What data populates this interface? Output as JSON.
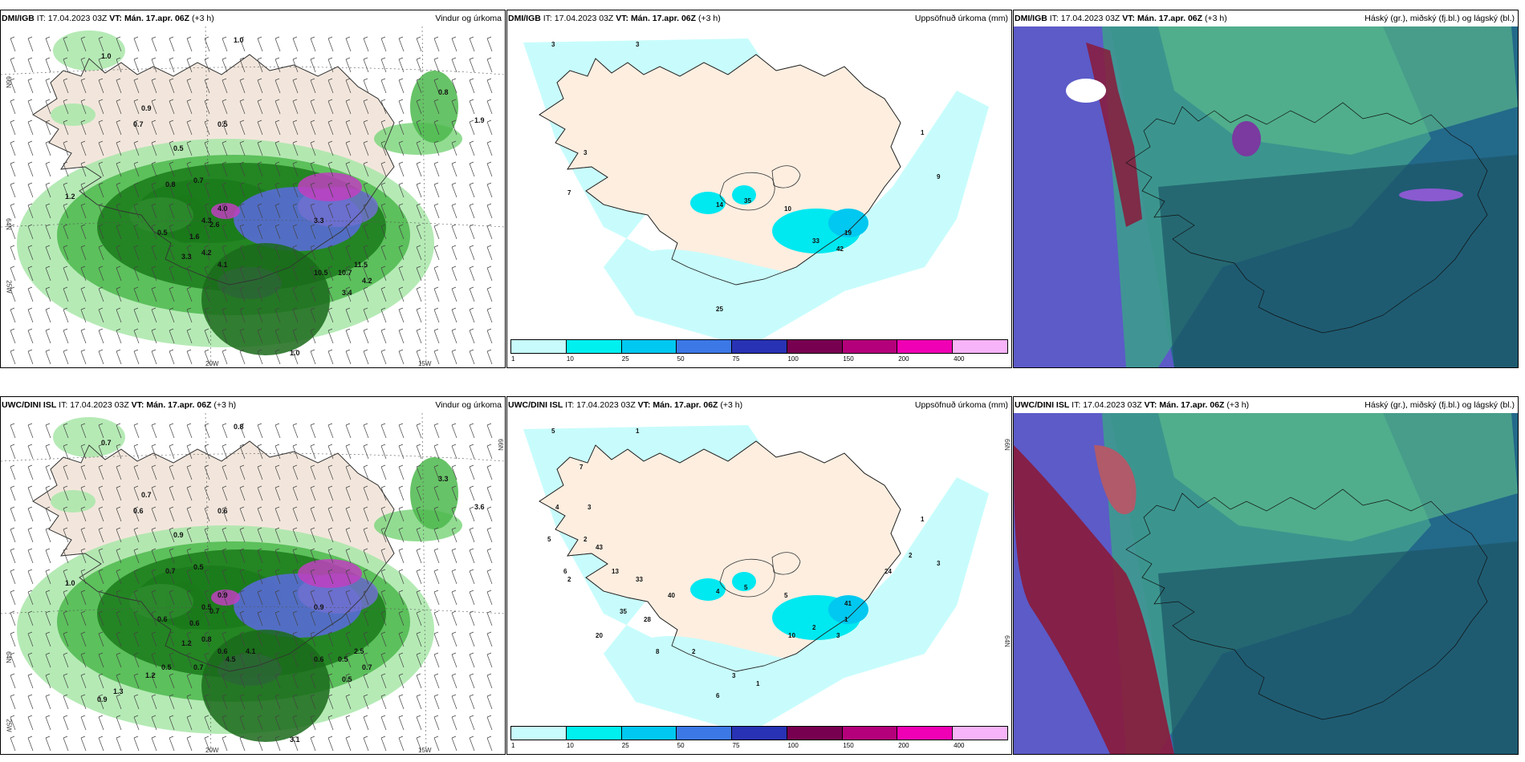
{
  "panels": [
    {
      "src": "DMI/IGB",
      "it_label": "IT:",
      "it": "17.04.2023 03Z",
      "vt_label": "VT:",
      "vt": "Mán. 17.apr. 06Z",
      "lead": "(+3 h)",
      "title": "Vindur og úrkoma",
      "type": "wind"
    },
    {
      "src": "DMI/IGB",
      "it_label": "IT:",
      "it": "17.04.2023 03Z",
      "vt_label": "VT:",
      "vt": "Mán. 17.apr. 06Z",
      "lead": "(+3 h)",
      "title": "Uppsöfnuð úrkoma (mm)",
      "type": "accum"
    },
    {
      "src": "DMI/IGB",
      "it_label": "IT:",
      "it": "17.04.2023 03Z",
      "vt_label": "VT:",
      "vt": "Mán. 17.apr. 06Z",
      "lead": "(+3 h)",
      "title": "Háský (gr.), miðský (fj.bl.) og lágský (bl.)",
      "type": "cloud"
    },
    {
      "src": "UWC/DINI ISL",
      "it_label": "IT:",
      "it": "17.04.2023 03Z",
      "vt_label": "VT:",
      "vt": "Mán. 17.apr. 06Z",
      "lead": "(+3 h)",
      "title": "Vindur og úrkoma",
      "type": "wind"
    },
    {
      "src": "UWC/DINI ISL",
      "it_label": "IT:",
      "it": "17.04.2023 03Z",
      "vt_label": "VT:",
      "vt": "Mán. 17.apr. 06Z",
      "lead": "(+3 h)",
      "title": "Uppsöfnuð úrkoma (mm)",
      "type": "accum"
    },
    {
      "src": "UWC/DINI ISL",
      "it_label": "IT:",
      "it": "17.04.2023 03Z",
      "vt_label": "VT:",
      "vt": "Mán. 17.apr. 06Z",
      "lead": "(+3 h)",
      "title": "Háský (gr.), miðský (fj.bl.) og lágský (bl.)",
      "type": "cloud"
    }
  ],
  "coords": {
    "lat66": "66N",
    "lat64": "64N",
    "lon25": "25W",
    "lon20": "20W",
    "lon15": "15W"
  },
  "legend": {
    "ticks": [
      "1",
      "10",
      "25",
      "50",
      "75",
      "100",
      "150",
      "200",
      "400"
    ],
    "colors": [
      "#c8fcfc",
      "#00f0f0",
      "#00c8f0",
      "#3c78e6",
      "#2832b4",
      "#780050",
      "#b4007a",
      "#f000b4",
      "#f8b4f8"
    ]
  },
  "labels": {
    "dmi_wind": [
      "1.0",
      "1.0",
      "0.9",
      "0.7",
      "0.5",
      "0.5",
      "0.7",
      "0.8",
      "0.5",
      "1.2",
      "4.0",
      "4.3",
      "2.6",
      "1.6",
      "4.2",
      "3.3",
      "4.1",
      "3.3",
      "10.5",
      "10.7",
      "11.5",
      "4.2",
      "3.4",
      "1.0",
      "0.8",
      "1.9"
    ],
    "uwc_wind": [
      "0.8",
      "0.7",
      "0.7",
      "0.6",
      "0.6",
      "0.9",
      "0.5",
      "0.7",
      "0.6",
      "1.0",
      "0.9",
      "0.5",
      "0.7",
      "0.6",
      "0.8",
      "1.2",
      "0.6",
      "0.9",
      "0.6",
      "0.5",
      "2.5",
      "0.7",
      "0.5",
      "3.1",
      "3.3",
      "3.6",
      "4.1",
      "4.5",
      "0.7",
      "0.5",
      "1.2",
      "1.3",
      "0.9"
    ],
    "dmi_accum": [
      "3",
      "3",
      "1",
      "3",
      "7",
      "9",
      "14",
      "35",
      "10",
      "19",
      "33",
      "42",
      "25"
    ],
    "uwc_accum": [
      "5",
      "1",
      "1",
      "2",
      "2",
      "3",
      "4",
      "5",
      "5",
      "1",
      "2",
      "3",
      "6",
      "7",
      "4",
      "3",
      "5",
      "6",
      "43",
      "13",
      "33",
      "40",
      "28",
      "35",
      "20",
      "8",
      "2",
      "3",
      "1",
      "10",
      "41",
      "24",
      "2"
    ]
  }
}
